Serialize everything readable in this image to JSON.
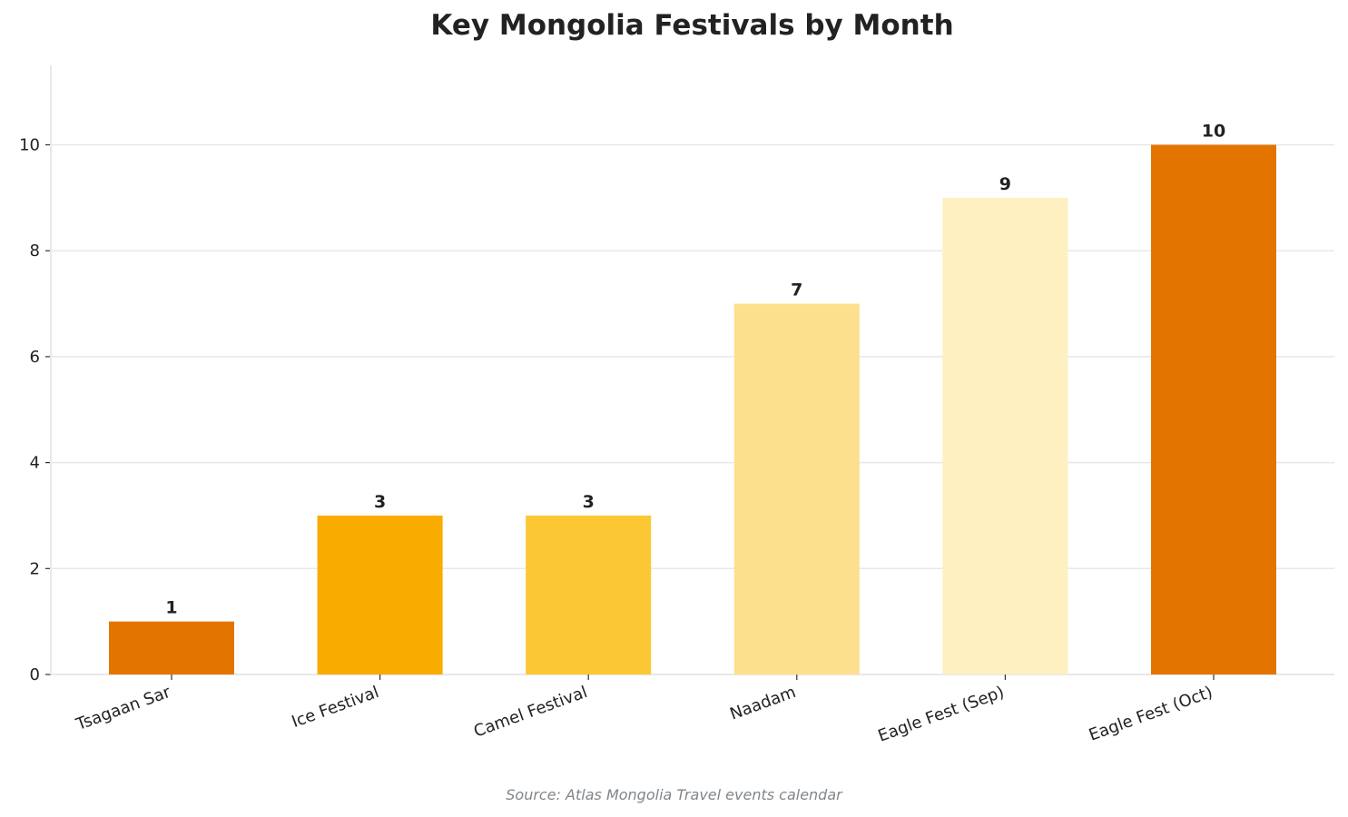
{
  "chart_data": {
    "type": "bar",
    "title": "Key Mongolia Festivals by Month",
    "xlabel": "",
    "ylabel": "",
    "categories": [
      "Tsagaan Sar",
      "Ice Festival",
      "Camel Festival",
      "Naadam",
      "Eagle Fest (Sep)",
      "Eagle Fest (Oct)"
    ],
    "values": [
      1,
      3,
      3,
      7,
      9,
      10
    ],
    "colors": [
      "#E37400",
      "#F9AB00",
      "#FBC733",
      "#FCE08E",
      "#FEF0C0",
      "#E37400"
    ],
    "ylim": [
      0,
      11.5
    ],
    "yticks": [
      0,
      2,
      4,
      6,
      8,
      10
    ],
    "grid": true,
    "data_labels": true,
    "source": "Source: Atlas Mongolia Travel events calendar"
  }
}
